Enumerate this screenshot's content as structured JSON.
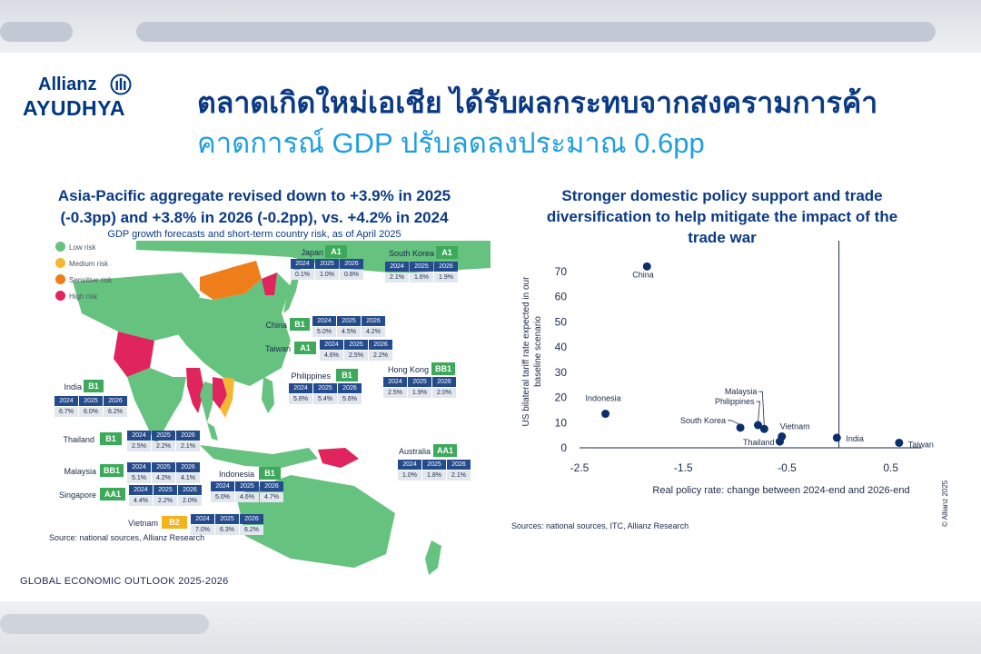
{
  "brand": {
    "line1": "Allianz",
    "line2": "AYUDHYA",
    "color": "#003781"
  },
  "title": {
    "line1": "ตลาดเกิดใหม่เอเชีย ได้รับผลกระทบจากสงครามการค้า",
    "line2": "คาดการณ์ GDP ปรับลดลงประมาณ 0.6pp"
  },
  "left_panel": {
    "heading_line1": "Asia-Pacific aggregate revised down to +3.9% in 2025",
    "heading_line2": "(-0.3pp) and +3.8% in 2026 (-0.2pp), vs. +4.2% in 2024",
    "subtitle": "GDP growth forecasts and short-term country risk, as of April 2025",
    "legend": [
      {
        "label": "Low risk",
        "color": "#66c27f"
      },
      {
        "label": "Medium risk",
        "color": "#f5b731"
      },
      {
        "label": "Sensitive risk",
        "color": "#ef7d1a"
      },
      {
        "label": "High risk",
        "color": "#e0245e"
      }
    ],
    "year_headers": [
      "2024",
      "2025",
      "2026"
    ],
    "countries": [
      {
        "name": "Japan",
        "rating": "A1",
        "values": [
          "0.1%",
          "1.0%",
          "0.8%"
        ],
        "risk_color": "#3daa5b"
      },
      {
        "name": "South Korea",
        "rating": "A1",
        "values": [
          "2.1%",
          "1.6%",
          "1.9%"
        ],
        "risk_color": "#3daa5b"
      },
      {
        "name": "China",
        "rating": "B1",
        "values": [
          "5.0%",
          "4.5%",
          "4.2%"
        ],
        "risk_color": "#3daa5b"
      },
      {
        "name": "Taiwan",
        "rating": "A1",
        "values": [
          "4.6%",
          "2.5%",
          "2.2%"
        ],
        "risk_color": "#3daa5b"
      },
      {
        "name": "Hong Kong",
        "rating": "BB1",
        "values": [
          "2.5%",
          "1.9%",
          "2.0%"
        ],
        "risk_color": "#3daa5b"
      },
      {
        "name": "Philippines",
        "rating": "B1",
        "values": [
          "5.6%",
          "5.4%",
          "5.6%"
        ],
        "risk_color": "#3daa5b"
      },
      {
        "name": "India",
        "rating": "B1",
        "values": [
          "6.7%",
          "6.0%",
          "6.2%"
        ],
        "risk_color": "#3daa5b"
      },
      {
        "name": "Thailand",
        "rating": "B1",
        "values": [
          "2.5%",
          "2.2%",
          "2.1%"
        ],
        "risk_color": "#3daa5b"
      },
      {
        "name": "Australia",
        "rating": "AA1",
        "values": [
          "1.0%",
          "1.8%",
          "2.1%"
        ],
        "risk_color": "#3daa5b"
      },
      {
        "name": "Malaysia",
        "rating": "BB1",
        "values": [
          "5.1%",
          "4.2%",
          "4.1%"
        ],
        "risk_color": "#3daa5b"
      },
      {
        "name": "Indonesia",
        "rating": "B1",
        "values": [
          "5.0%",
          "4.6%",
          "4.7%"
        ],
        "risk_color": "#3daa5b"
      },
      {
        "name": "Singapore",
        "rating": "AA1",
        "values": [
          "4.4%",
          "2.2%",
          "2.0%"
        ],
        "risk_color": "#3daa5b"
      },
      {
        "name": "Vietnam",
        "rating": "B2",
        "values": [
          "7.0%",
          "6.3%",
          "6.2%"
        ],
        "risk_color": "#f2b31c"
      }
    ],
    "source": "Source: national sources, Allianz Research"
  },
  "chart_data": {
    "type": "scatter",
    "title": "Stronger domestic policy support and trade diversification to help mitigate the impact of the trade war",
    "title_lines": [
      "Stronger domestic policy support and trade",
      "diversification to help mitigate the impact of the",
      "trade war"
    ],
    "xlabel": "Real policy rate: change between 2024-end and 2026-end",
    "ylabel_lines": [
      "US bilateral tariff rate expected in our",
      "baseline scenario"
    ],
    "xlim": [
      -2.5,
      0.8
    ],
    "ylim": [
      0,
      75
    ],
    "xticks": [
      -2.5,
      -1.5,
      -0.5,
      0.5
    ],
    "xtick_labels": [
      "-2.5",
      "-1.5",
      "-0.5",
      "0.5"
    ],
    "yticks": [
      0,
      10,
      20,
      30,
      40,
      50,
      60,
      70
    ],
    "ytick_labels": [
      "0",
      "10",
      "20",
      "30",
      "40",
      "50",
      "60",
      "70"
    ],
    "points": [
      {
        "label": "China",
        "x": -1.85,
        "y": 72
      },
      {
        "label": "Indonesia",
        "x": -2.25,
        "y": 13.5
      },
      {
        "label": "Malaysia",
        "x": -0.72,
        "y": 7.5
      },
      {
        "label": "Philippines",
        "x": -0.78,
        "y": 9
      },
      {
        "label": "South Korea",
        "x": -0.95,
        "y": 8
      },
      {
        "label": "Vietnam",
        "x": -0.55,
        "y": 4.5
      },
      {
        "label": "Thailand",
        "x": -0.57,
        "y": 2.5
      },
      {
        "label": "India",
        "x": -0.02,
        "y": 4
      },
      {
        "label": "Taiwan",
        "x": 0.58,
        "y": 2
      }
    ],
    "point_color": "#0b2f6b",
    "source": "Sources: national sources, ITC, Allianz Research"
  },
  "footer": "GLOBAL ECONOMIC OUTLOOK 2025-2026",
  "copyright": "© Allianz 2025"
}
